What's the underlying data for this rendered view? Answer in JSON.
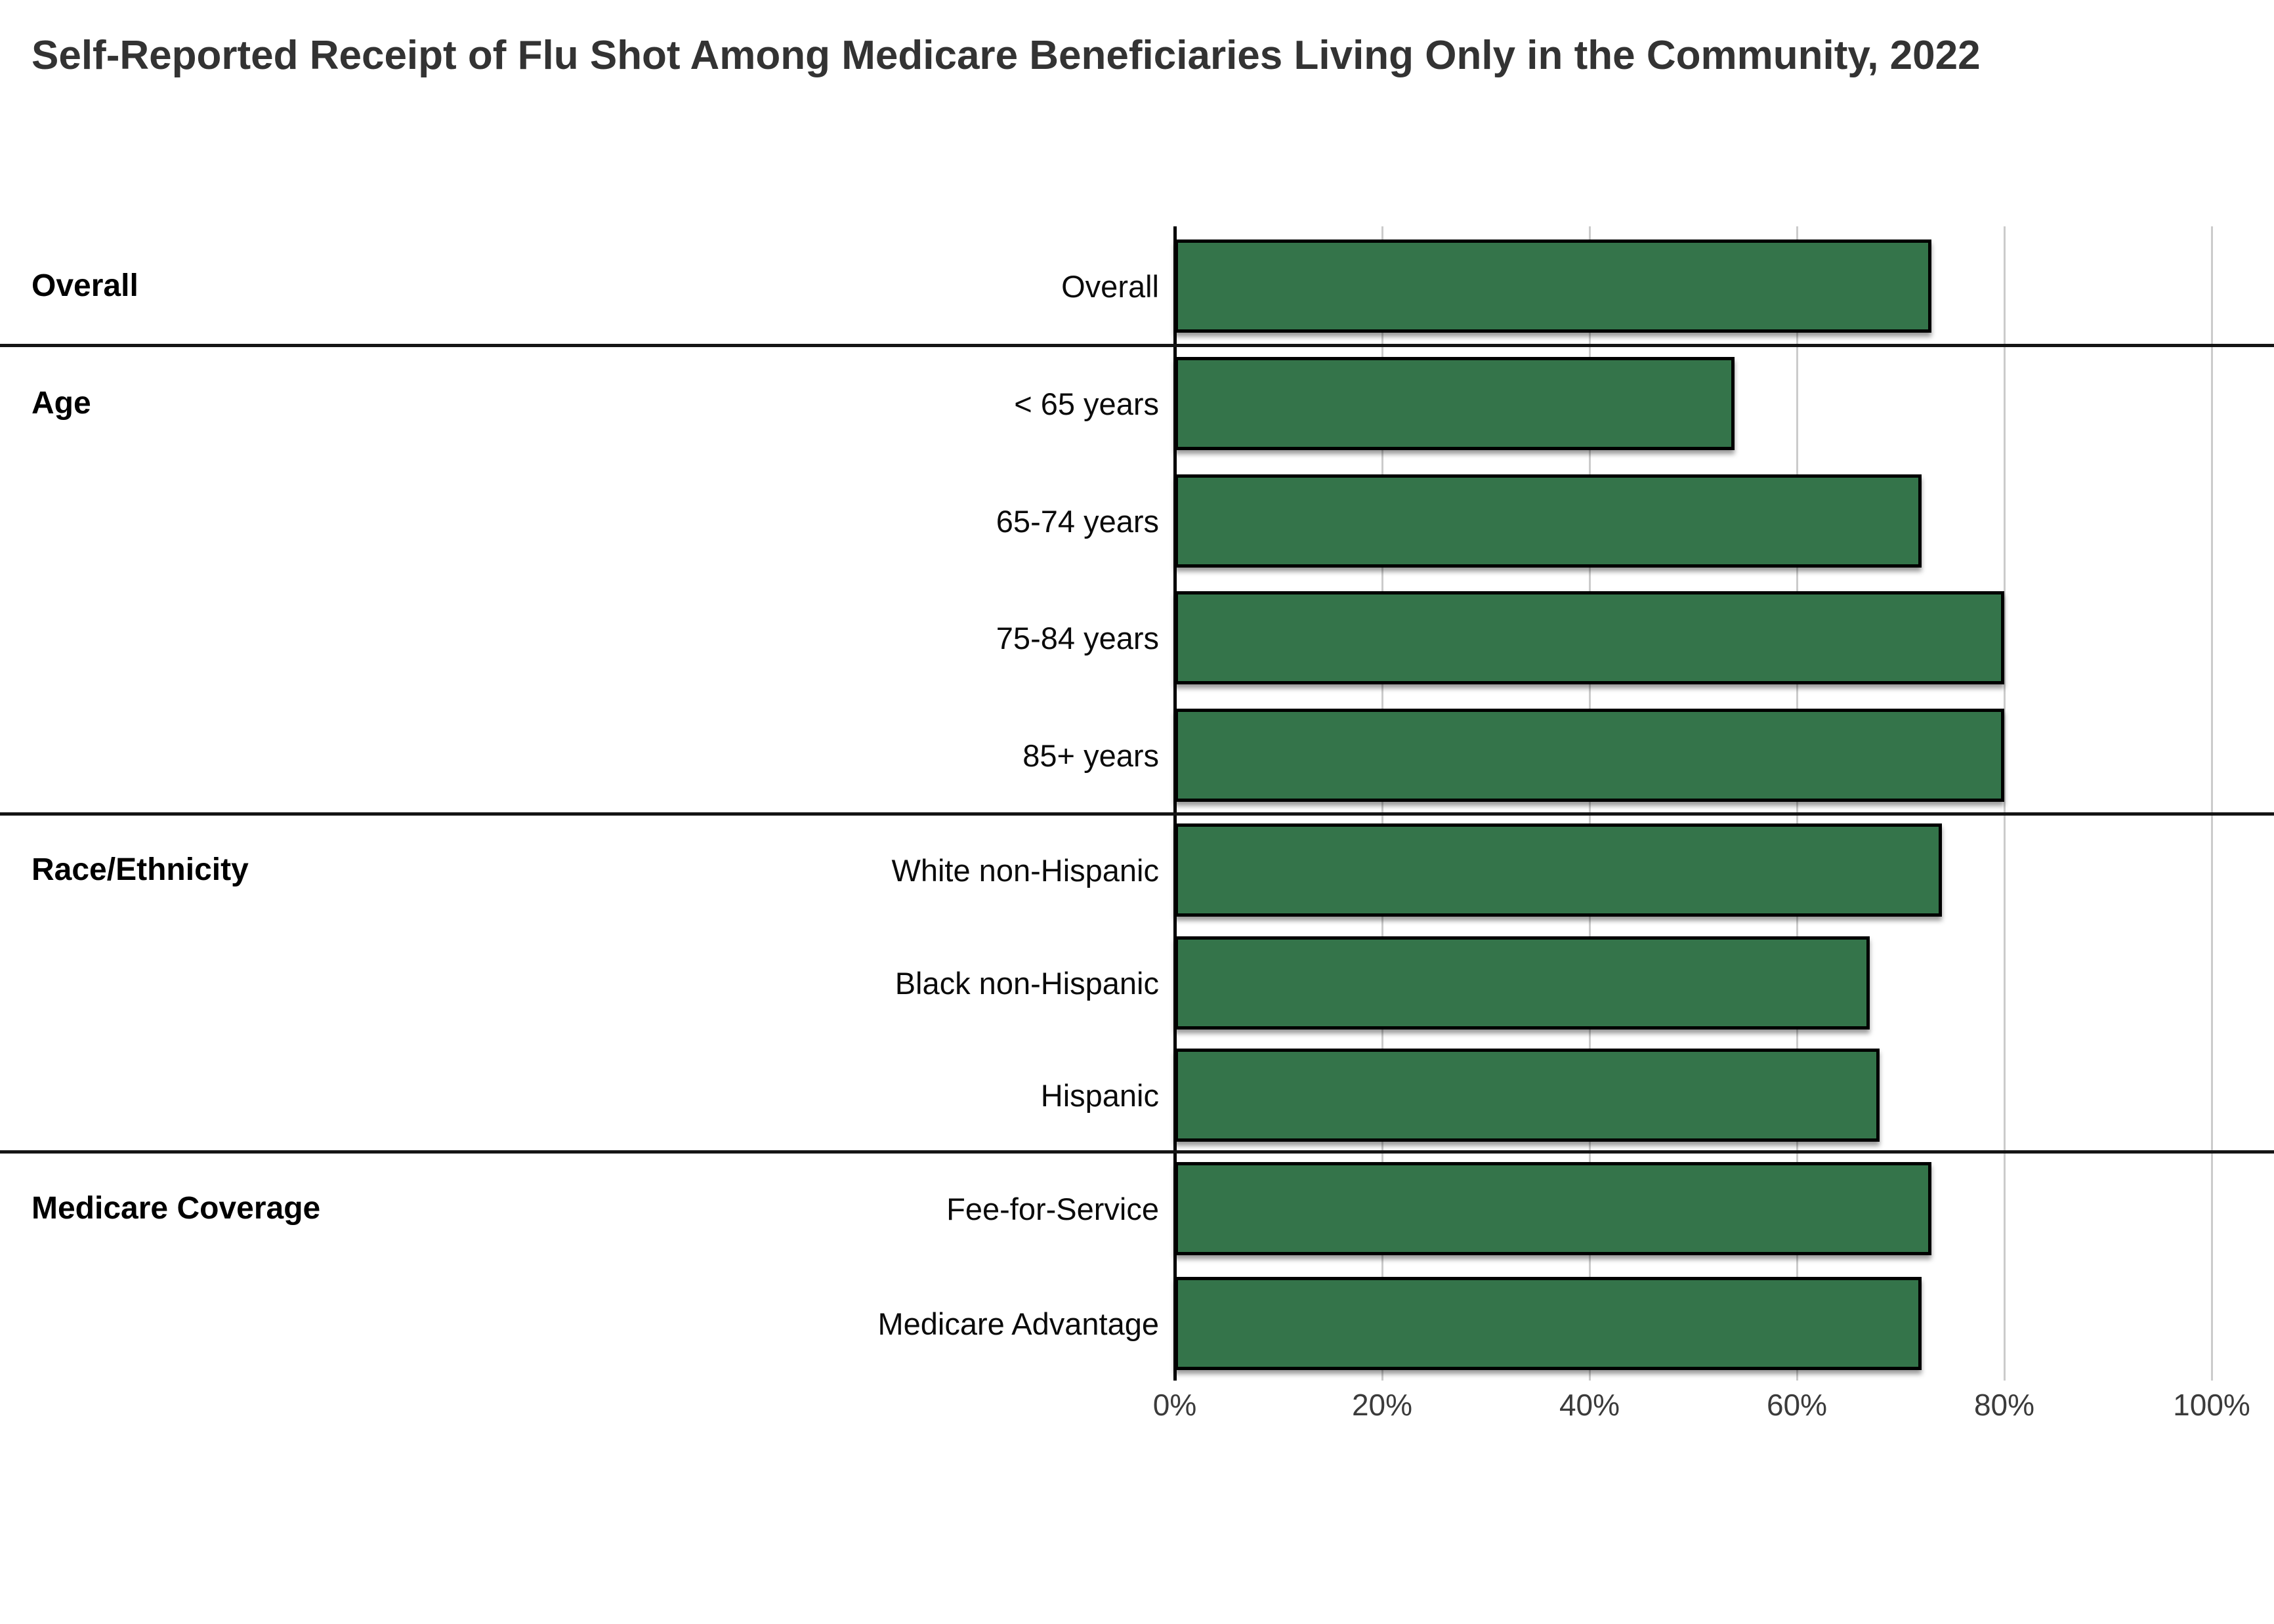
{
  "title": "Self-Reported Receipt of Flu Shot Among Medicare Beneficiaries Living Only in the Community, 2022",
  "colors": {
    "bar_fill": "#34744a",
    "bar_border": "#000000",
    "grid_line": "#cbcbcb",
    "axis_line": "#000000",
    "separator": "#151515",
    "title_text": "#333333",
    "label_text": "#0b0b0b",
    "tick_text": "#3b3b3b",
    "background": "#ffffff"
  },
  "chart_data": {
    "type": "bar",
    "orientation": "horizontal",
    "title": "Self-Reported Receipt of Flu Shot Among Medicare Beneficiaries Living Only in the Community, 2022",
    "unit": "%",
    "xlim": [
      0,
      100
    ],
    "x_tick_labels": [
      "0%",
      "20%",
      "40%",
      "60%",
      "80%",
      "100%"
    ],
    "x_tick_values": [
      0,
      20,
      40,
      60,
      80,
      100
    ],
    "grid": "vertical",
    "legend": "none",
    "groups": [
      {
        "group": "Overall",
        "categories": [
          "Overall"
        ],
        "values": [
          73
        ]
      },
      {
        "group": "Age",
        "categories": [
          "< 65 years",
          "65-74 years",
          "75-84 years",
          "85+ years"
        ],
        "values": [
          54,
          72,
          80,
          80
        ]
      },
      {
        "group": "Race/Ethnicity",
        "categories": [
          "White non-Hispanic",
          "Black non-Hispanic",
          "Hispanic"
        ],
        "values": [
          74,
          67,
          68
        ]
      },
      {
        "group": "Medicare Coverage",
        "categories": [
          "Fee-for-Service",
          "Medicare Advantage"
        ],
        "values": [
          73,
          72
        ]
      }
    ]
  }
}
